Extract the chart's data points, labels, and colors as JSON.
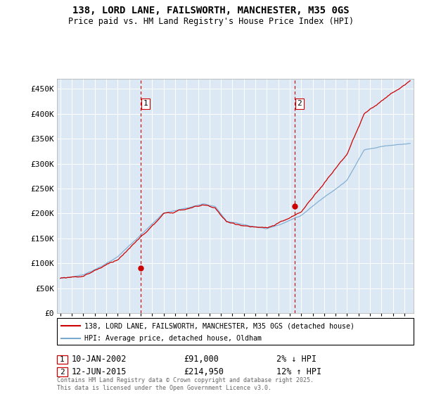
{
  "title": "138, LORD LANE, FAILSWORTH, MANCHESTER, M35 0GS",
  "subtitle": "Price paid vs. HM Land Registry's House Price Index (HPI)",
  "ylabel_ticks": [
    "£0",
    "£50K",
    "£100K",
    "£150K",
    "£200K",
    "£250K",
    "£300K",
    "£350K",
    "£400K",
    "£450K"
  ],
  "ytick_values": [
    0,
    50000,
    100000,
    150000,
    200000,
    250000,
    300000,
    350000,
    400000,
    450000
  ],
  "ylim": [
    0,
    470000
  ],
  "xlim_start": 1994.7,
  "xlim_end": 2025.8,
  "sale1": {
    "date_num": 2002.03,
    "price": 91000,
    "label": "1"
  },
  "sale2": {
    "date_num": 2015.44,
    "price": 214950,
    "label": "2"
  },
  "line_color_red": "#cc0000",
  "line_color_blue": "#7aaad0",
  "legend_label_red": "138, LORD LANE, FAILSWORTH, MANCHESTER, M35 0GS (detached house)",
  "legend_label_blue": "HPI: Average price, detached house, Oldham",
  "footer": "Contains HM Land Registry data © Crown copyright and database right 2025.\nThis data is licensed under the Open Government Licence v3.0.",
  "vline1_x": 2002.03,
  "vline2_x": 2015.44,
  "background_color": "#dce9f5",
  "label1_box_color": "#cc0000",
  "label2_box_color": "#cc0000"
}
